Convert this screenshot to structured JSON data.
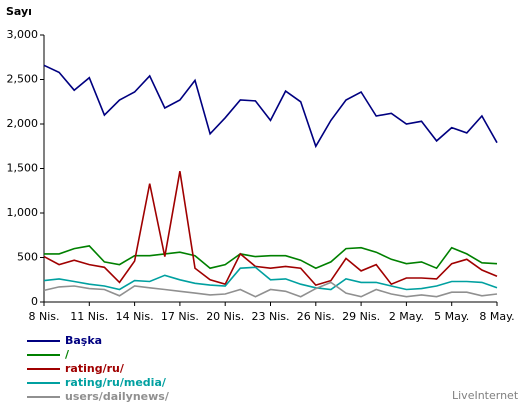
{
  "chart_data": {
    "type": "line",
    "y_label": "Sayı",
    "source": "LiveInternet",
    "categories": [
      "8 Nis.",
      null,
      null,
      "11 Nis.",
      null,
      null,
      "14 Nis.",
      null,
      null,
      "17 Nis.",
      null,
      null,
      "20 Nis.",
      null,
      null,
      "23 Nis.",
      null,
      null,
      "26 Nis.",
      null,
      null,
      "29 Nis.",
      null,
      null,
      "2 May.",
      null,
      null,
      "5 May.",
      null,
      null,
      "8 May."
    ],
    "ylim": [
      0,
      3000
    ],
    "yticks": [
      {
        "value": 0,
        "label": "0"
      },
      {
        "value": 500,
        "label": "500"
      },
      {
        "value": 1000,
        "label": "1,000"
      },
      {
        "value": 1500,
        "label": "1,500"
      },
      {
        "value": 2000,
        "label": "2,000"
      },
      {
        "value": 2500,
        "label": "2,500"
      },
      {
        "value": 3000,
        "label": "3,000"
      }
    ],
    "series": [
      {
        "name": "Başka",
        "color": "#000080",
        "values": [
          2660,
          2580,
          2380,
          2520,
          2100,
          2270,
          2360,
          2540,
          2180,
          2270,
          2490,
          1890,
          2070,
          2270,
          2260,
          2040,
          2370,
          2250,
          1750,
          2040,
          2270,
          2360,
          2090,
          2120,
          2000,
          2030,
          1810,
          1960,
          1900,
          2090,
          1790
        ]
      },
      {
        "name": "/",
        "color": "#008000",
        "values": [
          540,
          540,
          600,
          630,
          450,
          420,
          520,
          520,
          540,
          560,
          520,
          380,
          420,
          540,
          510,
          520,
          520,
          470,
          380,
          450,
          600,
          610,
          560,
          480,
          430,
          450,
          380,
          610,
          540,
          440,
          430
        ]
      },
      {
        "name": "rating/ru/",
        "color": "#a00000",
        "values": [
          510,
          420,
          470,
          420,
          390,
          220,
          460,
          1330,
          510,
          1470,
          380,
          250,
          200,
          540,
          400,
          380,
          400,
          380,
          190,
          240,
          490,
          350,
          420,
          200,
          270,
          270,
          260,
          430,
          480,
          360,
          290
        ]
      },
      {
        "name": "rating/ru/media/",
        "color": "#00a0a0",
        "values": [
          240,
          260,
          230,
          200,
          180,
          140,
          240,
          230,
          300,
          250,
          210,
          190,
          180,
          380,
          390,
          250,
          260,
          200,
          160,
          140,
          260,
          220,
          220,
          180,
          140,
          150,
          180,
          230,
          230,
          220,
          160
        ]
      },
      {
        "name": "users/dailynews/",
        "color": "#909090",
        "values": [
          130,
          170,
          180,
          150,
          140,
          70,
          180,
          160,
          140,
          120,
          100,
          80,
          90,
          140,
          60,
          140,
          120,
          60,
          150,
          220,
          100,
          60,
          140,
          90,
          60,
          80,
          60,
          110,
          110,
          70,
          90
        ]
      }
    ]
  }
}
